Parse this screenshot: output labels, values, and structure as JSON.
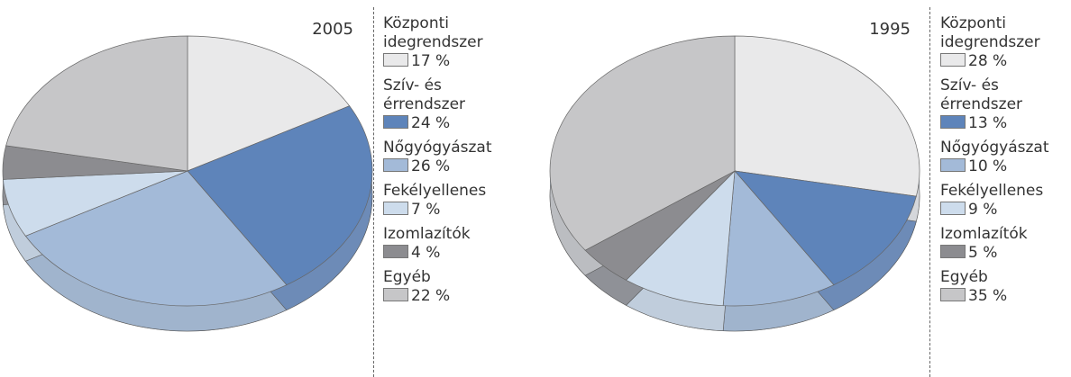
{
  "chart_data": [
    {
      "type": "pie",
      "title": "2005",
      "categories": [
        "Központi idegrendszer",
        "Szív- és érrendszer",
        "Nőgyógyászat",
        "Fekélyellenes",
        "Izomlazítók",
        "Egyéb"
      ],
      "values": [
        17,
        24,
        26,
        7,
        4,
        22
      ],
      "value_labels": [
        "17 %",
        "24 %",
        "26 %",
        "7 %",
        "4 %",
        "22 %"
      ],
      "colors": [
        "#e9e9ea",
        "#5e84ba",
        "#a3bad8",
        "#cddcec",
        "#8c8c90",
        "#c6c6c8"
      ]
    },
    {
      "type": "pie",
      "title": "1995",
      "categories": [
        "Központi idegrendszer",
        "Szív- és érrendszer",
        "Nőgyógyászat",
        "Fekélyellenes",
        "Izomlazítók",
        "Egyéb"
      ],
      "values": [
        28,
        13,
        10,
        9,
        5,
        35
      ],
      "value_labels": [
        "28 %",
        "13 %",
        "10 %",
        "9 %",
        "5 %",
        "35 %"
      ],
      "colors": [
        "#e9e9ea",
        "#5e84ba",
        "#a3bad8",
        "#cddcec",
        "#8c8c90",
        "#c6c6c8"
      ]
    }
  ]
}
